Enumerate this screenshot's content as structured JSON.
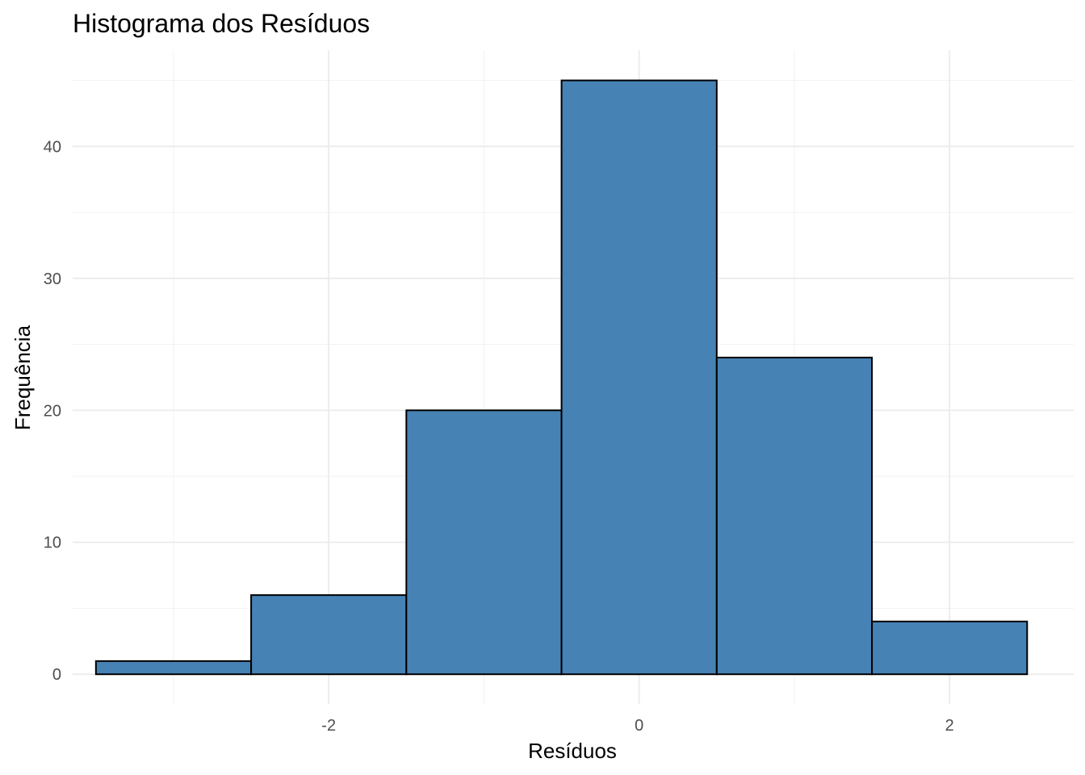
{
  "chart_data": {
    "type": "bar",
    "title": "Histograma dos Resíduos",
    "xlabel": "Resíduos",
    "ylabel": "Frequência",
    "bins": [
      {
        "x0": -3.5,
        "x1": -2.5,
        "count": 1
      },
      {
        "x0": -2.5,
        "x1": -1.5,
        "count": 6
      },
      {
        "x0": -1.5,
        "x1": -0.5,
        "count": 20
      },
      {
        "x0": -0.5,
        "x1": 0.5,
        "count": 45
      },
      {
        "x0": 0.5,
        "x1": 1.5,
        "count": 24
      },
      {
        "x0": 1.5,
        "x1": 2.5,
        "count": 4
      }
    ],
    "xlim": [
      -3.65,
      2.8
    ],
    "ylim": [
      -2.25,
      47.3
    ],
    "x_ticks": [
      -2,
      0,
      2
    ],
    "x_tick_labels": [
      "-2",
      "0",
      "2"
    ],
    "y_ticks": [
      0,
      10,
      20,
      30,
      40
    ],
    "y_tick_labels": [
      "0",
      "10",
      "20",
      "30",
      "40"
    ],
    "grid": true,
    "bar_color": "#4682B4",
    "bar_border": "#000000"
  }
}
